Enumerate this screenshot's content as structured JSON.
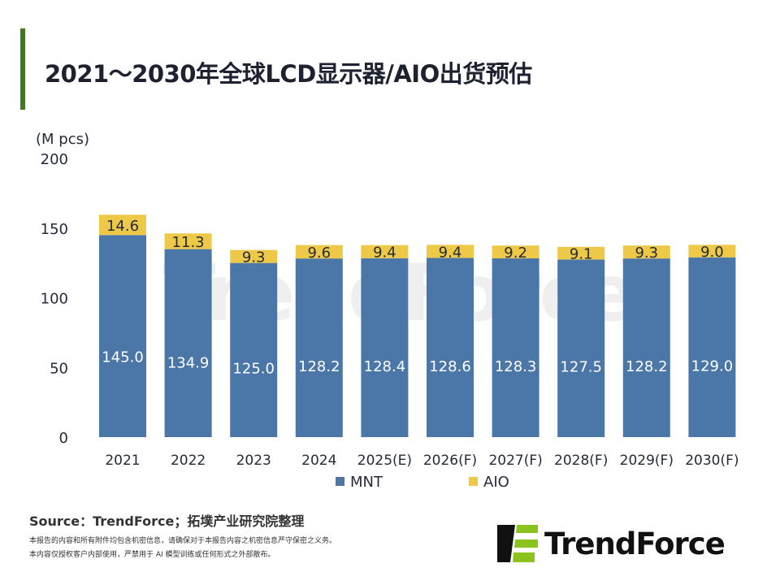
{
  "title": "2021～2030年全球LCD显示器/AIO出货预估",
  "source": "Source：TrendForce；拓墣产业研究院整理",
  "disclaimer": [
    "本报告的内容和所有附件均包含机密信息，请确保对于本报告内容之机密信息严守保密之义务。",
    "本内容仅授权客户内部使用，严禁用于 AI 模型训练或任何形式之外部散布。"
  ],
  "logo_text": "TrendForce",
  "watermark": "TrendForce",
  "chart_data": {
    "type": "bar",
    "stacked": true,
    "ylabel": "(M pcs)",
    "ylim": [
      0,
      200
    ],
    "yticks": [
      "0",
      "50",
      "100",
      "150",
      "200"
    ],
    "grid": false,
    "legend_position": "bottom",
    "categories": [
      "2021",
      "2022",
      "2023",
      "2024",
      "2025(E)",
      "2026(F)",
      "2027(F)",
      "2028(F)",
      "2029(F)",
      "2030(F)"
    ],
    "series": [
      {
        "name": "MNT",
        "color": "#4a77a8",
        "values": [
          145.0,
          134.9,
          125.0,
          128.2,
          128.4,
          128.6,
          128.3,
          127.5,
          128.2,
          129.0
        ]
      },
      {
        "name": "AIO",
        "color": "#edc947",
        "values": [
          14.6,
          11.3,
          9.3,
          9.6,
          9.4,
          9.4,
          9.2,
          9.1,
          9.3,
          9.0
        ]
      }
    ]
  }
}
